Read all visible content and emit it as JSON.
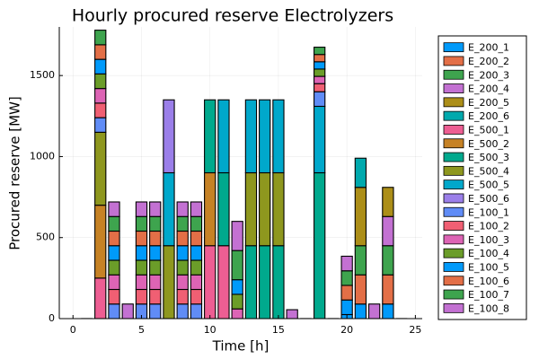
{
  "chart_data": {
    "type": "bar",
    "stacked": true,
    "title": "Hourly procured reserve Electrolyzers",
    "xlabel": "Time [h]",
    "ylabel": "Procured reserve [MW]",
    "xlim": [
      -1,
      25.5
    ],
    "ylim": [
      0,
      1800
    ],
    "xticks": [
      0,
      5,
      10,
      15,
      20,
      25
    ],
    "yticks": [
      0,
      500,
      1000,
      1500
    ],
    "grid": true,
    "legend_position": "right",
    "x": [
      1,
      2,
      3,
      4,
      5,
      6,
      7,
      8,
      9,
      10,
      11,
      12,
      13,
      14,
      15,
      16,
      17,
      18,
      19,
      20,
      21,
      22,
      23,
      24
    ],
    "series": [
      {
        "name": "E_200_1",
        "color": "#009AFA",
        "values": [
          0,
          0,
          0,
          0,
          0,
          0,
          0,
          0,
          0,
          0,
          0,
          0,
          0,
          0,
          0,
          0,
          0,
          0,
          0,
          25,
          90,
          0,
          90,
          0
        ]
      },
      {
        "name": "E_200_2",
        "color": "#E36F47",
        "values": [
          0,
          0,
          0,
          0,
          0,
          0,
          0,
          0,
          0,
          0,
          0,
          0,
          0,
          0,
          0,
          0,
          0,
          0,
          0,
          0,
          180,
          0,
          180,
          0
        ]
      },
      {
        "name": "E_200_3",
        "color": "#3EA44E",
        "values": [
          0,
          0,
          0,
          0,
          0,
          0,
          0,
          0,
          0,
          0,
          0,
          0,
          0,
          0,
          0,
          0,
          0,
          0,
          0,
          0,
          180,
          0,
          180,
          0
        ]
      },
      {
        "name": "E_200_4",
        "color": "#C371D2",
        "values": [
          0,
          0,
          0,
          0,
          0,
          0,
          0,
          0,
          0,
          0,
          0,
          0,
          0,
          0,
          0,
          0,
          0,
          0,
          0,
          0,
          0,
          0,
          180,
          0
        ]
      },
      {
        "name": "E_200_5",
        "color": "#AC8E18",
        "values": [
          0,
          0,
          0,
          0,
          0,
          0,
          0,
          0,
          0,
          0,
          0,
          0,
          0,
          0,
          0,
          0,
          0,
          0,
          0,
          0,
          360,
          0,
          180,
          0
        ]
      },
      {
        "name": "E_200_6",
        "color": "#00A9AD",
        "values": [
          0,
          0,
          0,
          0,
          0,
          0,
          0,
          0,
          0,
          0,
          0,
          0,
          0,
          0,
          0,
          0,
          0,
          0,
          0,
          0,
          180,
          0,
          0,
          0
        ]
      },
      {
        "name": "E_500_1",
        "color": "#ED5E93",
        "values": [
          0,
          250,
          0,
          0,
          0,
          0,
          0,
          0,
          0,
          450,
          450,
          0,
          0,
          0,
          0,
          0,
          0,
          0,
          0,
          0,
          0,
          0,
          0,
          0
        ]
      },
      {
        "name": "E_500_2",
        "color": "#C68225",
        "values": [
          0,
          450,
          0,
          0,
          0,
          0,
          0,
          0,
          0,
          450,
          0,
          0,
          0,
          0,
          0,
          0,
          0,
          0,
          0,
          0,
          0,
          0,
          0,
          0
        ]
      },
      {
        "name": "E_500_3",
        "color": "#00A98D",
        "values": [
          0,
          0,
          0,
          0,
          0,
          0,
          0,
          0,
          0,
          450,
          450,
          0,
          450,
          450,
          450,
          0,
          0,
          900,
          0,
          0,
          0,
          0,
          0,
          0
        ]
      },
      {
        "name": "E_500_4",
        "color": "#8E971E",
        "values": [
          0,
          450,
          0,
          0,
          0,
          0,
          450,
          0,
          0,
          0,
          0,
          0,
          450,
          450,
          450,
          0,
          0,
          0,
          0,
          0,
          0,
          0,
          0,
          0
        ]
      },
      {
        "name": "E_500_5",
        "color": "#00A8CB",
        "values": [
          0,
          0,
          0,
          0,
          0,
          0,
          450,
          0,
          0,
          0,
          450,
          0,
          450,
          450,
          450,
          0,
          0,
          410,
          0,
          0,
          0,
          0,
          0,
          0
        ]
      },
      {
        "name": "E_500_6",
        "color": "#9B7FE9",
        "values": [
          0,
          0,
          0,
          0,
          0,
          0,
          450,
          0,
          0,
          0,
          0,
          0,
          0,
          0,
          0,
          0,
          0,
          0,
          0,
          0,
          0,
          0,
          0,
          0
        ]
      },
      {
        "name": "E_100_1",
        "color": "#608CF6",
        "values": [
          0,
          90,
          90,
          0,
          90,
          90,
          0,
          90,
          90,
          0,
          0,
          0,
          0,
          0,
          0,
          0,
          0,
          90,
          0,
          0,
          0,
          0,
          0,
          0
        ]
      },
      {
        "name": "E_100_2",
        "color": "#F05F73",
        "values": [
          0,
          90,
          90,
          0,
          90,
          90,
          0,
          90,
          90,
          0,
          0,
          0,
          0,
          0,
          0,
          0,
          0,
          50,
          0,
          0,
          0,
          0,
          0,
          0
        ]
      },
      {
        "name": "E_100_3",
        "color": "#DD64B5",
        "values": [
          0,
          90,
          90,
          0,
          90,
          90,
          0,
          90,
          90,
          0,
          0,
          60,
          0,
          0,
          0,
          0,
          0,
          45,
          0,
          0,
          0,
          0,
          0,
          0
        ]
      },
      {
        "name": "E_100_4",
        "color": "#6B9D29",
        "values": [
          0,
          90,
          90,
          0,
          90,
          90,
          0,
          90,
          90,
          0,
          0,
          90,
          0,
          0,
          0,
          0,
          0,
          45,
          0,
          0,
          0,
          0,
          0,
          0
        ]
      },
      {
        "name": "E_100_5",
        "color": "#009AFA",
        "values": [
          0,
          90,
          90,
          0,
          90,
          90,
          0,
          90,
          90,
          0,
          0,
          90,
          0,
          0,
          0,
          0,
          0,
          45,
          0,
          90,
          0,
          0,
          0,
          0
        ]
      },
      {
        "name": "E_100_6",
        "color": "#E36F47",
        "values": [
          0,
          90,
          90,
          0,
          90,
          90,
          0,
          90,
          90,
          0,
          0,
          0,
          0,
          0,
          0,
          0,
          0,
          45,
          0,
          90,
          0,
          0,
          0,
          0
        ]
      },
      {
        "name": "E_100_7",
        "color": "#3EA44E",
        "values": [
          0,
          90,
          90,
          0,
          90,
          90,
          0,
          90,
          90,
          0,
          0,
          180,
          0,
          0,
          0,
          0,
          0,
          45,
          0,
          90,
          0,
          0,
          0,
          0
        ]
      },
      {
        "name": "E_100_8",
        "color": "#C371D2",
        "values": [
          0,
          0,
          90,
          90,
          90,
          90,
          0,
          90,
          90,
          0,
          0,
          180,
          0,
          0,
          0,
          55,
          0,
          0,
          0,
          90,
          0,
          90,
          0,
          0
        ]
      }
    ],
    "totals_note": "Stacks are estimated visually; some stacks exceed the displayed y-range and are clipped at 1800."
  }
}
